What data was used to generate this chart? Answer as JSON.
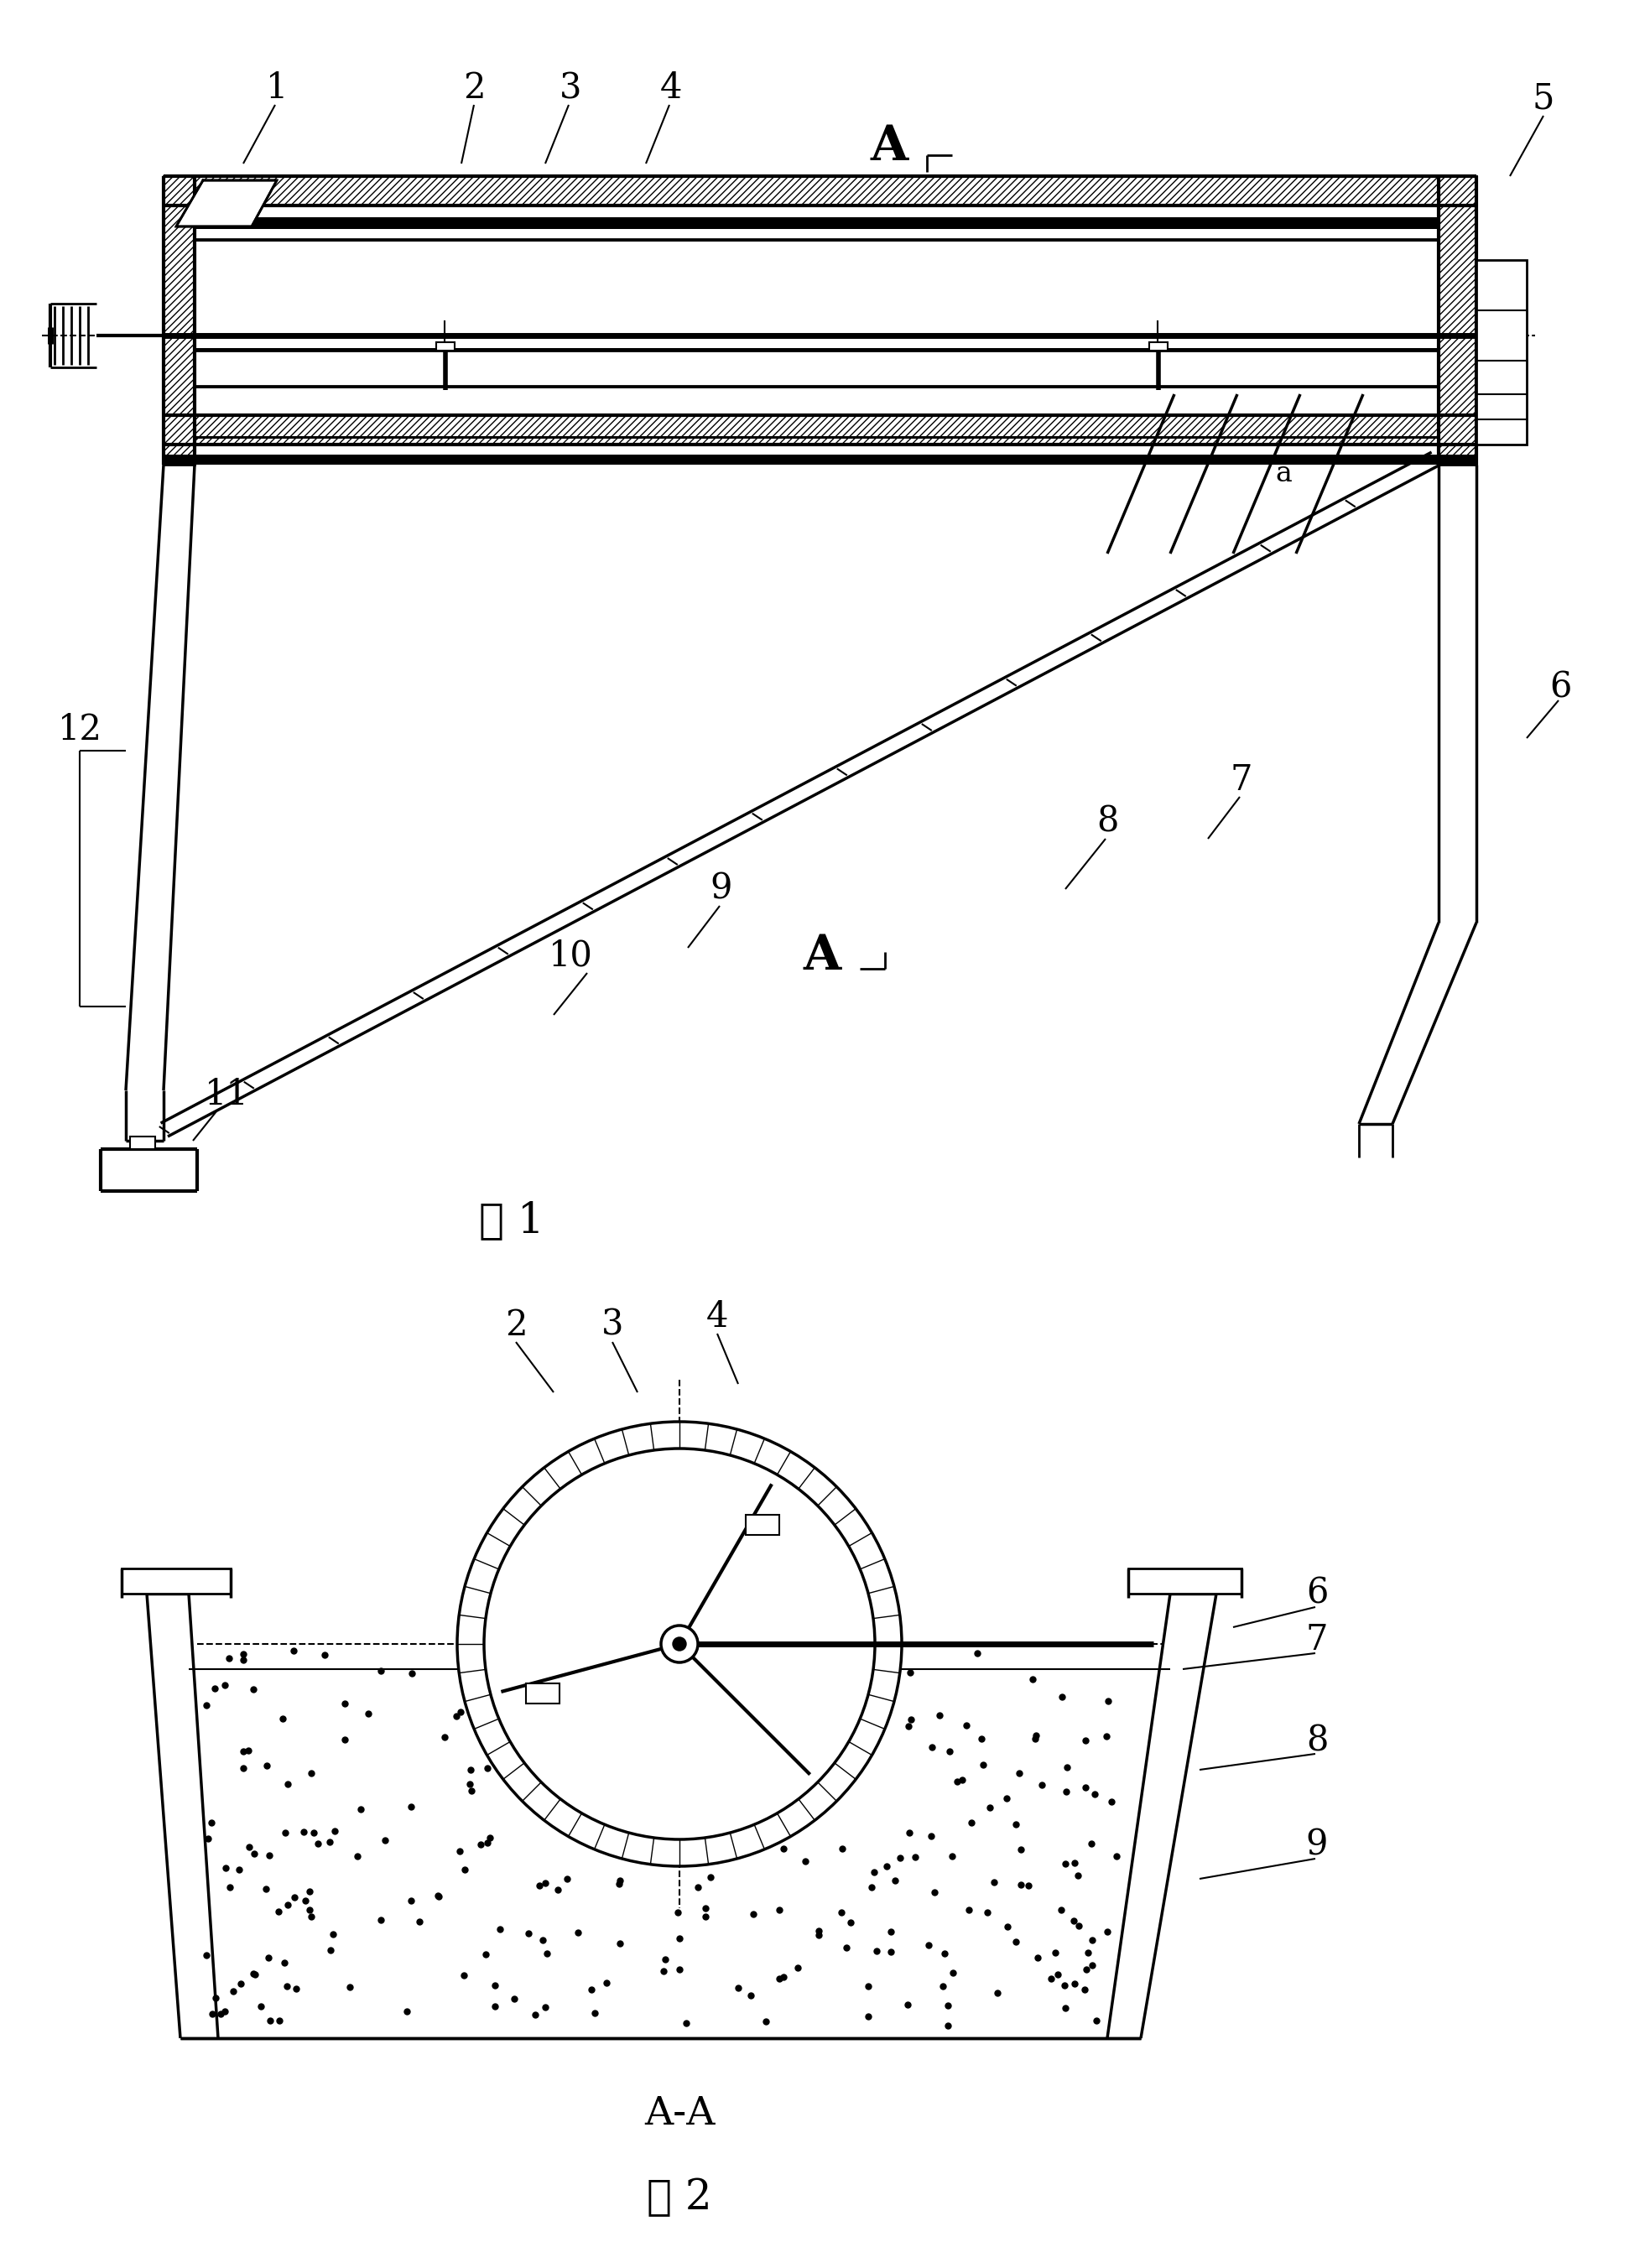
{
  "bg_color": "#ffffff",
  "fig_width": 19.67,
  "fig_height": 27.04,
  "title1": "图 1",
  "title2": "图 2",
  "section_label": "A-A"
}
